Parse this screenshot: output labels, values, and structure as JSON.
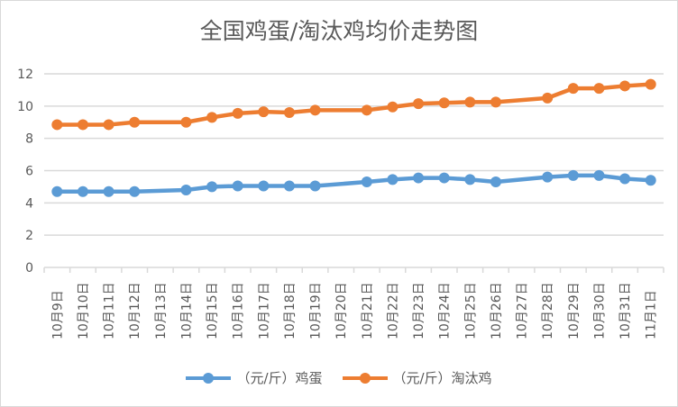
{
  "chart_data": {
    "type": "line",
    "title": "全国鸡蛋/淘汰鸡均价走势图",
    "categories": [
      "10月9日",
      "10月10日",
      "10月11日",
      "10月12日",
      "10月13日",
      "10月14日",
      "10月15日",
      "10月16日",
      "10月17日",
      "10月18日",
      "10月19日",
      "10月20日",
      "10月21日",
      "10月22日",
      "10月23日",
      "10月24日",
      "10月25日",
      "10月26日",
      "10月27日",
      "10月28日",
      "10月29日",
      "10月30日",
      "10月31日",
      "11月1日"
    ],
    "yticks": [
      "0",
      "2",
      "4",
      "6",
      "8",
      "10",
      "12"
    ],
    "ylim": [
      0,
      12
    ],
    "grid": true,
    "legend_position": "bottom",
    "series": [
      {
        "name": "（元/斤）鸡蛋",
        "color": "#5B9BD5",
        "values": [
          4.7,
          4.7,
          4.7,
          4.7,
          null,
          4.8,
          5.0,
          5.05,
          5.05,
          5.05,
          5.05,
          null,
          5.3,
          5.45,
          5.55,
          5.55,
          5.45,
          5.3,
          null,
          5.6,
          5.7,
          5.7,
          5.5,
          5.4
        ]
      },
      {
        "name": "（元/斤）淘汰鸡",
        "color": "#ED7D31",
        "values": [
          8.85,
          8.85,
          8.85,
          9.0,
          null,
          9.0,
          9.3,
          9.55,
          9.65,
          9.6,
          9.75,
          null,
          9.75,
          9.95,
          10.15,
          10.2,
          10.25,
          10.25,
          null,
          10.5,
          11.1,
          11.1,
          11.25,
          11.35
        ]
      }
    ]
  }
}
